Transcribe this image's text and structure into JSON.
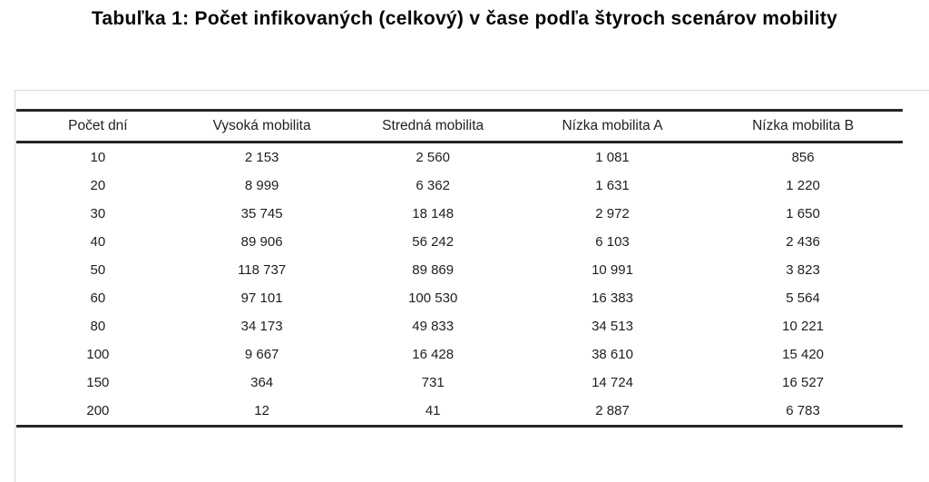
{
  "title": "Tabuľka 1: Počet infikovaných (celkový) v čase podľa štyroch scenárov mobility",
  "table": {
    "columns": [
      "Počet dní",
      "Vysoká mobilita",
      "Stredná mobilita",
      "Nízka mobilita A",
      "Nízka mobilita B"
    ],
    "rows": [
      [
        "10",
        "2 153",
        "2 560",
        "1 081",
        "856"
      ],
      [
        "20",
        "8 999",
        "6 362",
        "1 631",
        "1 220"
      ],
      [
        "30",
        "35 745",
        "18 148",
        "2 972",
        "1 650"
      ],
      [
        "40",
        "89 906",
        "56 242",
        "6 103",
        "2 436"
      ],
      [
        "50",
        "118 737",
        "89 869",
        "10 991",
        "3 823"
      ],
      [
        "60",
        "97 101",
        "100 530",
        "16 383",
        "5 564"
      ],
      [
        "80",
        "34 173",
        "49 833",
        "34 513",
        "10 221"
      ],
      [
        "100",
        "9 667",
        "16 428",
        "38 610",
        "15 420"
      ],
      [
        "150",
        "364",
        "731",
        "14 724",
        "16 527"
      ],
      [
        "200",
        "12",
        "41",
        "2 887",
        "6 783"
      ]
    ]
  },
  "chart_data": {
    "type": "table",
    "title": "Tabuľka 1: Počet infikovaných (celkový) v čase podľa štyroch scenárov mobility",
    "x": [
      10,
      20,
      30,
      40,
      50,
      60,
      80,
      100,
      150,
      200
    ],
    "xlabel": "Počet dní",
    "series": [
      {
        "name": "Vysoká mobilita",
        "values": [
          2153,
          8999,
          35745,
          89906,
          118737,
          97101,
          34173,
          9667,
          364,
          12
        ]
      },
      {
        "name": "Stredná mobilita",
        "values": [
          2560,
          6362,
          18148,
          56242,
          89869,
          100530,
          49833,
          16428,
          731,
          41
        ]
      },
      {
        "name": "Nízka mobilita A",
        "values": [
          1081,
          1631,
          2972,
          6103,
          10991,
          16383,
          34513,
          38610,
          14724,
          2887
        ]
      },
      {
        "name": "Nízka mobilita B",
        "values": [
          856,
          1220,
          1650,
          2436,
          3823,
          5564,
          10221,
          15420,
          16527,
          6783
        ]
      }
    ]
  },
  "colors": {
    "rule_dark": "#262626",
    "rule_light": "#d9d9d9",
    "text": "#1f1f1f",
    "background": "#ffffff"
  }
}
